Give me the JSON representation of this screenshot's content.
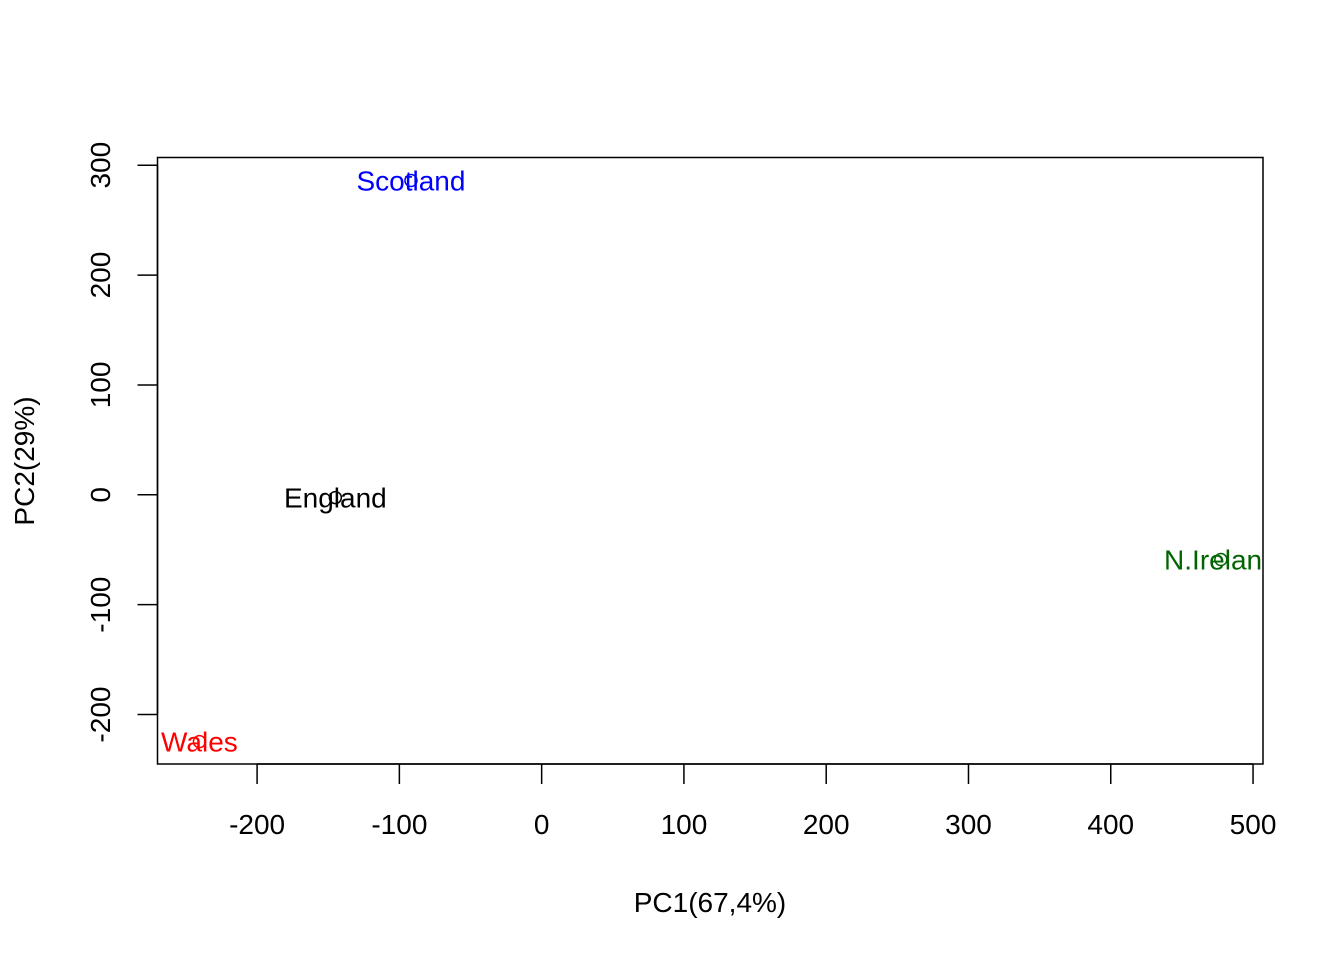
{
  "chart_data": {
    "type": "scatter",
    "title": "",
    "xlabel": "PC1(67,4%)",
    "ylabel": "PC2(29%)",
    "xlim": [
      -270,
      507
    ],
    "ylim": [
      -245,
      307
    ],
    "xticks": [
      -200,
      -100,
      0,
      100,
      200,
      300,
      400,
      500
    ],
    "xtick_labels": [
      "-200",
      "-100",
      "0",
      "100",
      "200",
      "300",
      "400",
      "500"
    ],
    "yticks": [
      -200,
      -100,
      0,
      100,
      200,
      300
    ],
    "ytick_labels": [
      "-200",
      "-100",
      "0",
      "100",
      "200",
      "300"
    ],
    "grid": false,
    "legend": null,
    "points": [
      {
        "label": "England",
        "x": -144.99,
        "y": -2.53,
        "color": "#000000"
      },
      {
        "label": "Wales",
        "x": -240.53,
        "y": -224.65,
        "color": "#ff0000"
      },
      {
        "label": "Scotland",
        "x": -91.87,
        "y": 286.08,
        "color": "#0000ff"
      },
      {
        "label": "N.Ireland",
        "x": 477.39,
        "y": -58.9,
        "color": "#006400"
      }
    ]
  }
}
